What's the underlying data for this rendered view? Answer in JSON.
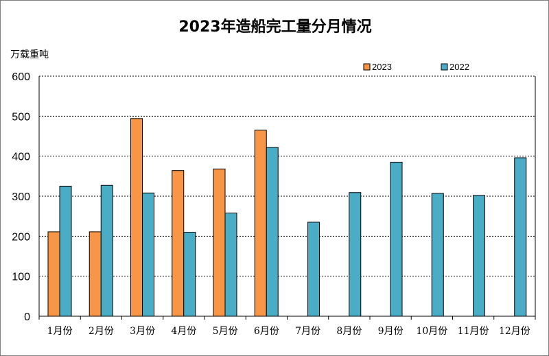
{
  "chart_data": {
    "type": "bar",
    "title": "2023年造船完工量分月情况",
    "ylabel": "万载重吨",
    "xlabel": "",
    "categories": [
      "1月份",
      "2月份",
      "3月份",
      "4月份",
      "5月份",
      "6月份",
      "7月份",
      "8月份",
      "9月份",
      "10月份",
      "11月份",
      "12月份"
    ],
    "series": [
      {
        "name": "2023",
        "color": "#f79646",
        "values": [
          211,
          211,
          494,
          364,
          368,
          465,
          null,
          null,
          null,
          null,
          null,
          null
        ]
      },
      {
        "name": "2022",
        "color": "#4bacc6",
        "values": [
          325,
          327,
          308,
          210,
          258,
          422,
          235,
          309,
          385,
          307,
          302,
          396
        ]
      }
    ],
    "ylim": [
      0,
      600
    ],
    "yticks": [
      0,
      100,
      200,
      300,
      400,
      500,
      600
    ],
    "grid": "dashed horizontal",
    "legend_position": "top-right"
  }
}
